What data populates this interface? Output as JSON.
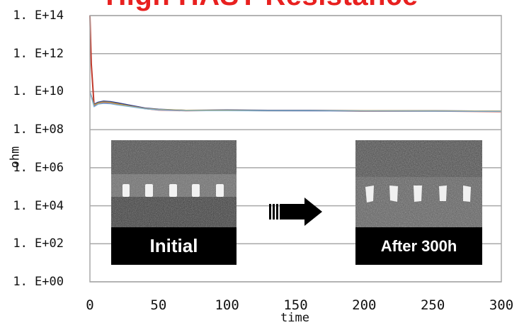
{
  "title": "High HAST Resistance",
  "chart_data": {
    "type": "line",
    "title": "High HAST Resistance",
    "xlabel": "time",
    "ylabel": "ohm",
    "xlim": [
      0,
      300
    ],
    "ylim_log10": [
      0,
      14
    ],
    "yscale": "log",
    "grid": "horizontal",
    "x_ticks": [
      "0",
      "50",
      "100",
      "150",
      "200",
      "250",
      "300"
    ],
    "y_ticks": [
      "1. E+00",
      "1. E+02",
      "1. E+04",
      "1. E+06",
      "1. E+08",
      "1. E+10",
      "1. E+12",
      "1. E+14"
    ],
    "series": [
      {
        "color": "#c0392b",
        "x": [
          0,
          1,
          3,
          6,
          10,
          15,
          20,
          30,
          40,
          50,
          70,
          100,
          130,
          160,
          200,
          250,
          300
        ],
        "y": [
          100000000000000.0,
          300000000000.0,
          2000000000.0,
          2600000000.0,
          3000000000.0,
          2800000000.0,
          2400000000.0,
          1800000000.0,
          1300000000.0,
          1100000000.0,
          1000000000.0,
          1050000000.0,
          1000000000.0,
          1000000000.0,
          950000000.0,
          950000000.0,
          900000000.0
        ]
      },
      {
        "color": "#2c3e8f",
        "x": [
          0,
          3,
          6,
          10,
          15,
          20,
          30,
          40,
          50,
          70,
          100,
          130,
          160,
          200,
          250,
          300
        ],
        "y": [
          10000000000.0,
          2200000000.0,
          2800000000.0,
          3200000000.0,
          3000000000.0,
          2600000000.0,
          1900000000.0,
          1400000000.0,
          1200000000.0,
          1050000000.0,
          1100000000.0,
          1050000000.0,
          1050000000.0,
          1000000000.0,
          1000000000.0,
          950000000.0
        ]
      },
      {
        "color": "#8e44ad",
        "x": [
          0,
          3,
          6,
          10,
          15,
          20,
          30,
          40,
          50,
          70,
          100,
          130,
          160,
          200,
          250,
          300
        ],
        "y": [
          10000000000.0,
          1800000000.0,
          2400000000.0,
          2600000000.0,
          2500000000.0,
          2200000000.0,
          1700000000.0,
          1300000000.0,
          1100000000.0,
          1000000000.0,
          1000000000.0,
          1000000000.0,
          980000000.0,
          960000000.0,
          950000000.0,
          920000000.0
        ]
      },
      {
        "color": "#c8a23a",
        "x": [
          0,
          3,
          6,
          10,
          15,
          20,
          30,
          40,
          50,
          70,
          100,
          130,
          160,
          200,
          250,
          300
        ],
        "y": [
          10000000000.0,
          2000000000.0,
          2500000000.0,
          2900000000.0,
          2700000000.0,
          2300000000.0,
          1700000000.0,
          1300000000.0,
          1150000000.0,
          1050000000.0,
          1050000000.0,
          1000000000.0,
          1000000000.0,
          1000000000.0,
          980000000.0,
          960000000.0
        ]
      },
      {
        "color": "#7fb3d5",
        "x": [
          0,
          3,
          6,
          10,
          15,
          20,
          30,
          40,
          50,
          70,
          100,
          130,
          160,
          200,
          250,
          300
        ],
        "y": [
          10000000000.0,
          1600000000.0,
          2200000000.0,
          2400000000.0,
          2300000000.0,
          2000000000.0,
          1600000000.0,
          1250000000.0,
          1100000000.0,
          1000000000.0,
          1000000000.0,
          980000000.0,
          980000000.0,
          960000000.0,
          940000000.0,
          920000000.0
        ]
      }
    ],
    "annotations": {
      "inset_left_label": "Initial",
      "inset_right_label": "After 300h"
    }
  },
  "colors": {
    "title": "#e8201f",
    "grid": "#a9a9a9",
    "arrow": "#000000",
    "caption_bg": "#000000",
    "caption_text": "#ffffff"
  }
}
